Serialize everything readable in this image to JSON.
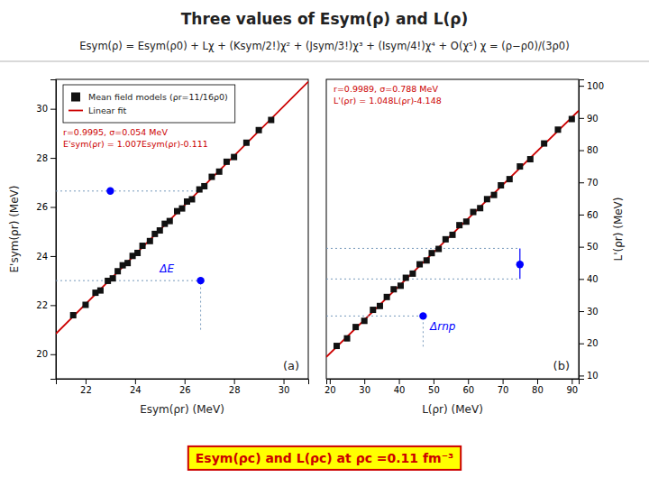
{
  "title": "Three values of Esym(ρ) and L(ρ)",
  "subtitle": "Esym(ρ)  =  Esym(ρ0) + Lχ + (Ksym/2!)χ² + (Jsym/3!)χ³ + (Isym/4!)χ⁴ + O(χ⁵)      χ = (ρ−ρ0)/(3ρ0)",
  "annotations": [
    {
      "text": "Esym(ρc)  and L(ρc) at ρc =0.11 fm⁻³",
      "color": "#cc0000"
    }
  ],
  "chart_data": [
    {
      "type": "scatter",
      "title": "(a)",
      "xlabel": "Esym(ρr) (MeV)",
      "ylabel": "E'sym(ρr) (MeV)",
      "xlim": [
        20.8,
        31.0
      ],
      "ylim": [
        19.0,
        31.2
      ],
      "xticks": [
        22,
        24,
        26,
        28,
        30
      ],
      "yticks": [
        20,
        22,
        24,
        26,
        28,
        30
      ],
      "legend": "upper left",
      "series": [
        {
          "name": "Mean field models (ρr=11/16ρ0)",
          "type": "scatter",
          "marker": "square",
          "color": "#111111",
          "x": [
            21.5,
            22.0,
            22.4,
            22.6,
            22.9,
            23.1,
            23.3,
            23.5,
            23.7,
            23.9,
            24.1,
            24.3,
            24.6,
            24.8,
            25.0,
            25.2,
            25.4,
            25.7,
            25.9,
            26.1,
            26.3,
            26.6,
            26.8,
            27.1,
            27.4,
            27.7,
            28.0,
            28.5,
            29.0,
            29.5
          ],
          "values": [
            21.5895,
            22.013,
            22.5058,
            22.5972,
            22.9893,
            23.0907,
            23.3821,
            23.6235,
            23.7149,
            24.0063,
            24.1277,
            24.4191,
            24.6112,
            24.9026,
            25.044,
            25.3154,
            25.4268,
            25.8289,
            25.9403,
            26.2217,
            26.3131,
            26.7152,
            26.8466,
            27.2287,
            27.4408,
            27.8429,
            28.035,
            28.6185,
            29.132,
            29.5455
          ]
        },
        {
          "name": "Linear fit",
          "type": "line",
          "color": "#cc0000",
          "x": [
            20.8,
            31.0
          ],
          "values": [
            20.8346,
            31.106
          ]
        },
        {
          "type": "scatter",
          "marker": "circle",
          "color": "blue",
          "x": [
            23.0,
            26.65
          ],
          "values": [
            26.65,
            23.0
          ]
        },
        {
          "type": "line",
          "line_style": "dotted",
          "color": "#7799bb",
          "x": [
            26.65,
            26.65
          ],
          "values": [
            21.0,
            23.0
          ]
        },
        {
          "type": "line",
          "line_style": "dotted",
          "color": "#7799bb",
          "x": [
            20.8,
            26.65
          ],
          "values": [
            26.65,
            26.65
          ]
        },
        {
          "type": "line",
          "line_style": "dotted",
          "color": "#7799bb",
          "x": [
            20.8,
            26.65
          ],
          "values": [
            23.0,
            23.0
          ]
        }
      ],
      "annotations": [
        {
          "text": "ΔE",
          "x": 25.0,
          "y": 23.35,
          "color": "blue"
        },
        {
          "text": "r=0.9995, σ=0.054 MeV",
          "color": "#cc0000"
        },
        {
          "text": "E'sym(ρr) = 1.007Esym(ρr)-0.111",
          "color": "#cc0000"
        }
      ]
    },
    {
      "type": "scatter",
      "title": "(b)",
      "xlabel": "L(ρr) (MeV)",
      "y2label": "L'(ρr) (MeV)",
      "xlim": [
        19.0,
        92.0
      ],
      "y2lim": [
        9.0,
        102.0
      ],
      "xticks": [
        20,
        30,
        40,
        50,
        60,
        70,
        80,
        90
      ],
      "y2ticks": [
        10,
        20,
        30,
        40,
        50,
        60,
        70,
        80,
        90,
        100
      ],
      "series": [
        {
          "type": "scatter",
          "marker": "square",
          "color": "#111111",
          "axis": "y2",
          "x": [
            22.0,
            25.0,
            27.5,
            30.0,
            32.5,
            34.5,
            36.5,
            38.5,
            40.5,
            42.0,
            44.0,
            46.0,
            48.0,
            49.5,
            51.5,
            53.5,
            55.5,
            57.5,
            59.5,
            61.5,
            63.5,
            65.5,
            67.5,
            69.5,
            72.0,
            75.0,
            78.0,
            82.0,
            86.0,
            90.0
          ],
          "values": [
            19.208,
            21.552,
            25.072,
            26.992,
            30.412,
            31.608,
            34.404,
            36.8,
            37.896,
            40.368,
            41.664,
            44.56,
            45.756,
            48.028,
            49.324,
            52.32,
            53.716,
            56.712,
            57.808,
            60.804,
            62.0,
            64.796,
            66.092,
            69.088,
            71.008,
            74.952,
            77.196,
            82.088,
            86.38,
            89.672
          ]
        },
        {
          "type": "line",
          "color": "#cc0000",
          "axis": "y2",
          "x": [
            19.0,
            92.0
          ],
          "values": [
            15.764,
            92.268
          ]
        },
        {
          "type": "scatter",
          "marker": "circle",
          "color": "blue",
          "axis": "y2",
          "x": [
            47.0,
            75.0
          ],
          "values": [
            28.5,
            44.5
          ],
          "error_low": [
            null,
            40.0
          ],
          "error_high": [
            null,
            49.5
          ]
        },
        {
          "type": "line",
          "line_style": "dotted",
          "color": "#7799bb",
          "axis": "y2",
          "x": [
            47.0,
            47.0
          ],
          "values": [
            19.0,
            28.5
          ]
        },
        {
          "type": "line",
          "line_style": "dotted",
          "color": "#7799bb",
          "axis": "y2",
          "x": [
            19.0,
            47.0
          ],
          "values": [
            28.5,
            28.5
          ]
        },
        {
          "type": "line",
          "line_style": "dotted",
          "color": "#7799bb",
          "axis": "y2",
          "x": [
            19.0,
            75.0
          ],
          "values": [
            49.5,
            49.5
          ]
        },
        {
          "type": "line",
          "line_style": "dotted",
          "color": "#7799bb",
          "axis": "y2",
          "x": [
            19.0,
            75.0
          ],
          "values": [
            40.0,
            40.0
          ]
        }
      ],
      "annotations": [
        {
          "text": "Δrnp",
          "x": 49.0,
          "y": 24.0,
          "color": "blue"
        },
        {
          "text": "r=0.9989, σ=0.788 MeV",
          "color": "#cc0000"
        },
        {
          "text": "L'(ρr) = 1.048L(ρr)-4.148",
          "color": "#cc0000"
        }
      ]
    }
  ]
}
